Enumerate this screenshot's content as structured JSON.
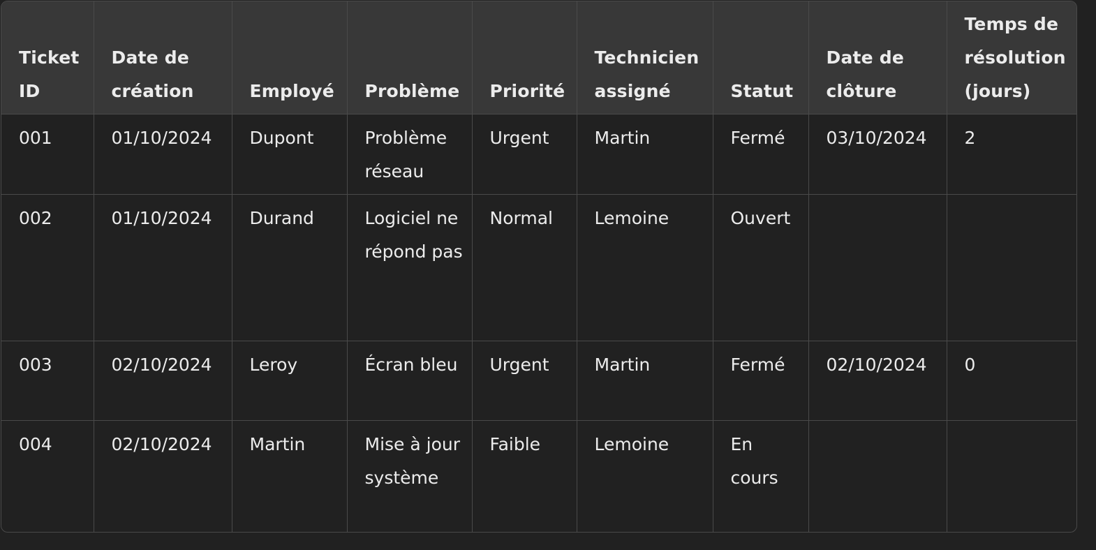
{
  "table": {
    "headers": [
      "Ticket ID",
      "Date de création",
      "Employé",
      "Problème",
      "Priorité",
      "Technicien assigné",
      "Statut",
      "Date de clôture",
      "Temps de résolution (jours)"
    ],
    "rows": [
      [
        "001",
        "01/10/2024",
        "Dupont",
        "Problème réseau",
        "Urgent",
        "Martin",
        "Fermé",
        "03/10/2024",
        "2"
      ],
      [
        "002",
        "01/10/2024",
        "Durand",
        "Logiciel ne répond pas",
        "Normal",
        "Lemoine",
        "Ouvert",
        "",
        ""
      ],
      [
        "003",
        "02/10/2024",
        "Leroy",
        "Écran bleu",
        "Urgent",
        "Martin",
        "Fermé",
        "02/10/2024",
        "0"
      ],
      [
        "004",
        "02/10/2024",
        "Martin",
        "Mise à jour système",
        "Faible",
        "Lemoine",
        "En cours",
        "",
        ""
      ]
    ]
  }
}
